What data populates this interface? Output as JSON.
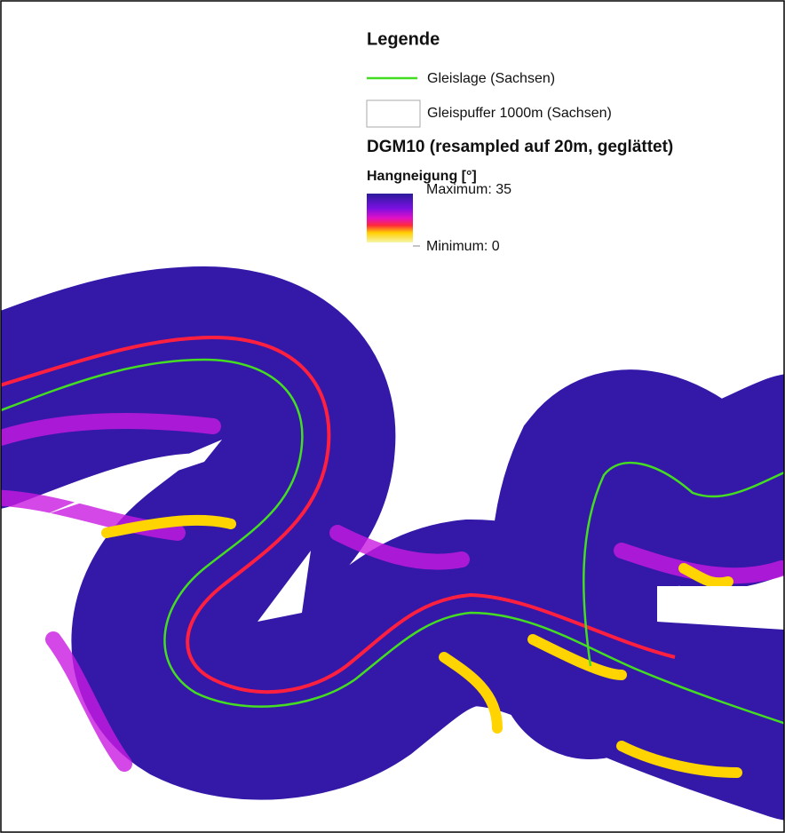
{
  "legend": {
    "title": "Legende",
    "track": "Gleislage (Sachsen)",
    "buffer": "Gleispuffer 1000m (Sachsen)",
    "dem_title": "DGM10 (resampled auf 20m, geglättet)",
    "slope_title": "Hangneigung [°]",
    "max_label": "Maximum: 35",
    "min_label": "Minimum: 0"
  }
}
